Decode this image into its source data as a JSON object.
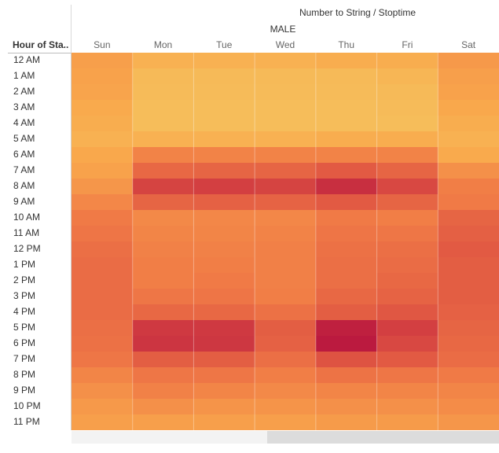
{
  "header": {
    "title": "Number to String / Stoptime",
    "group": "MALE",
    "row_header": "Hour of Sta.."
  },
  "chart_data": {
    "type": "heatmap",
    "title": "Number to String / Stoptime",
    "group": "MALE",
    "row_header": "Hour of Sta..",
    "columns": [
      "Sun",
      "Mon",
      "Tue",
      "Wed",
      "Thu",
      "Fri",
      "Sat"
    ],
    "rows": [
      "12 AM",
      "1 AM",
      "2 AM",
      "3 AM",
      "4 AM",
      "5 AM",
      "6 AM",
      "7 AM",
      "8 AM",
      "9 AM",
      "10 AM",
      "11 AM",
      "12 PM",
      "1 PM",
      "2 PM",
      "3 PM",
      "4 PM",
      "5 PM",
      "6 PM",
      "7 PM",
      "8 PM",
      "9 PM",
      "10 PM",
      "11 PM"
    ],
    "values": [
      [
        0.3,
        0.2,
        0.2,
        0.2,
        0.22,
        0.22,
        0.33
      ],
      [
        0.28,
        0.15,
        0.15,
        0.15,
        0.15,
        0.17,
        0.3
      ],
      [
        0.27,
        0.14,
        0.14,
        0.14,
        0.14,
        0.15,
        0.28
      ],
      [
        0.24,
        0.13,
        0.13,
        0.13,
        0.13,
        0.14,
        0.25
      ],
      [
        0.22,
        0.13,
        0.13,
        0.13,
        0.13,
        0.13,
        0.22
      ],
      [
        0.2,
        0.2,
        0.2,
        0.2,
        0.22,
        0.22,
        0.2
      ],
      [
        0.25,
        0.45,
        0.45,
        0.45,
        0.45,
        0.45,
        0.24
      ],
      [
        0.28,
        0.6,
        0.62,
        0.62,
        0.68,
        0.62,
        0.38
      ],
      [
        0.35,
        0.8,
        0.82,
        0.8,
        0.9,
        0.78,
        0.48
      ],
      [
        0.43,
        0.62,
        0.64,
        0.63,
        0.68,
        0.62,
        0.5
      ],
      [
        0.5,
        0.42,
        0.43,
        0.43,
        0.5,
        0.48,
        0.62
      ],
      [
        0.53,
        0.44,
        0.44,
        0.45,
        0.53,
        0.52,
        0.65
      ],
      [
        0.56,
        0.46,
        0.46,
        0.47,
        0.55,
        0.56,
        0.68
      ],
      [
        0.58,
        0.48,
        0.48,
        0.47,
        0.56,
        0.58,
        0.66
      ],
      [
        0.58,
        0.48,
        0.5,
        0.47,
        0.56,
        0.6,
        0.66
      ],
      [
        0.58,
        0.52,
        0.53,
        0.48,
        0.6,
        0.63,
        0.66
      ],
      [
        0.58,
        0.6,
        0.6,
        0.55,
        0.66,
        0.7,
        0.64
      ],
      [
        0.56,
        0.85,
        0.85,
        0.66,
        0.97,
        0.82,
        0.62
      ],
      [
        0.55,
        0.87,
        0.86,
        0.64,
        1.0,
        0.78,
        0.6
      ],
      [
        0.52,
        0.66,
        0.66,
        0.56,
        0.72,
        0.68,
        0.58
      ],
      [
        0.44,
        0.52,
        0.52,
        0.48,
        0.54,
        0.52,
        0.5
      ],
      [
        0.38,
        0.46,
        0.44,
        0.42,
        0.44,
        0.44,
        0.44
      ],
      [
        0.33,
        0.38,
        0.36,
        0.36,
        0.38,
        0.38,
        0.4
      ],
      [
        0.3,
        0.3,
        0.3,
        0.3,
        0.32,
        0.32,
        0.35
      ]
    ],
    "color_scale": [
      "#f2d469",
      "#f9a84c",
      "#f07a46",
      "#dc4e42",
      "#bb1a3f"
    ]
  }
}
